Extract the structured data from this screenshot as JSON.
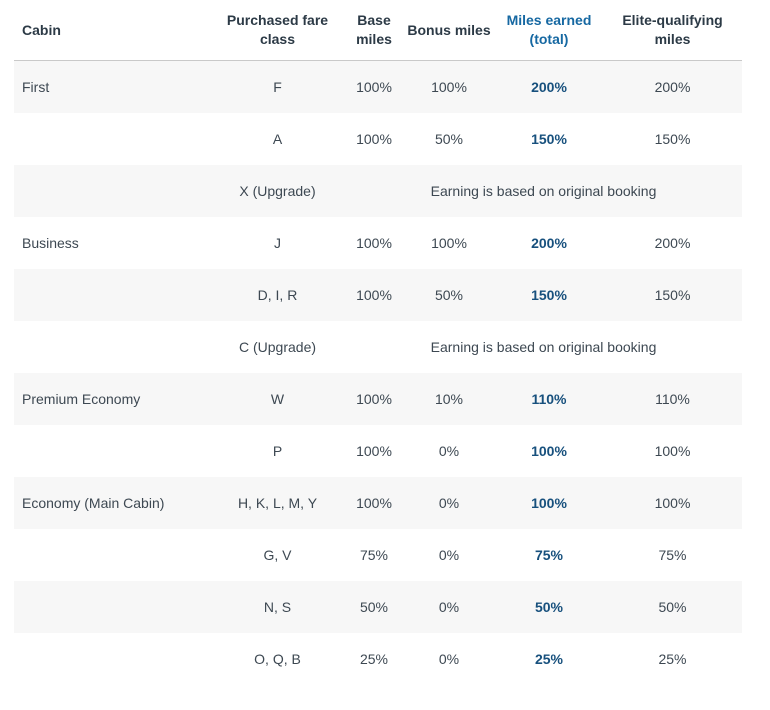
{
  "colors": {
    "header_text": "#2c3a46",
    "header_accent_blue": "#1668a2",
    "body_text": "#3d4852",
    "value_accent_blue": "#17507d",
    "alt_row_bg": "#f7f7f7",
    "header_divider": "#c9c9c9",
    "page_bg": "#ffffff"
  },
  "table": {
    "columns": [
      {
        "key": "cabin",
        "label": "Cabin"
      },
      {
        "key": "fare",
        "label": "Purchased fare class"
      },
      {
        "key": "base",
        "label": "Base miles"
      },
      {
        "key": "bonus",
        "label": "Bonus miles"
      },
      {
        "key": "earned",
        "label": "Miles earned (total)"
      },
      {
        "key": "elite",
        "label": "Elite-qualifying miles"
      }
    ],
    "rows": [
      {
        "cabin": "First",
        "fare": "F",
        "base": "100%",
        "bonus": "100%",
        "earned": "200%",
        "elite": "200%"
      },
      {
        "cabin": "",
        "fare": "A",
        "base": "100%",
        "bonus": "50%",
        "earned": "150%",
        "elite": "150%"
      },
      {
        "cabin": "",
        "fare": "X (Upgrade)",
        "span": "Earning is based on original booking"
      },
      {
        "cabin": "Business",
        "fare": "J",
        "base": "100%",
        "bonus": "100%",
        "earned": "200%",
        "elite": "200%"
      },
      {
        "cabin": "",
        "fare": "D, I, R",
        "base": "100%",
        "bonus": "50%",
        "earned": "150%",
        "elite": "150%"
      },
      {
        "cabin": "",
        "fare": "C (Upgrade)",
        "span": "Earning is based on original booking"
      },
      {
        "cabin": "Premium Economy",
        "fare": "W",
        "base": "100%",
        "bonus": "10%",
        "earned": "110%",
        "elite": "110%"
      },
      {
        "cabin": "",
        "fare": "P",
        "base": "100%",
        "bonus": "0%",
        "earned": "100%",
        "elite": "100%"
      },
      {
        "cabin": "Economy (Main Cabin)",
        "fare": "H, K, L, M, Y",
        "base": "100%",
        "bonus": "0%",
        "earned": "100%",
        "elite": "100%"
      },
      {
        "cabin": "",
        "fare": "G, V",
        "base": "75%",
        "bonus": "0%",
        "earned": "75%",
        "elite": "75%"
      },
      {
        "cabin": "",
        "fare": "N, S",
        "base": "50%",
        "bonus": "0%",
        "earned": "50%",
        "elite": "50%"
      },
      {
        "cabin": "",
        "fare": "O, Q, B",
        "base": "25%",
        "bonus": "0%",
        "earned": "25%",
        "elite": "25%"
      }
    ]
  }
}
